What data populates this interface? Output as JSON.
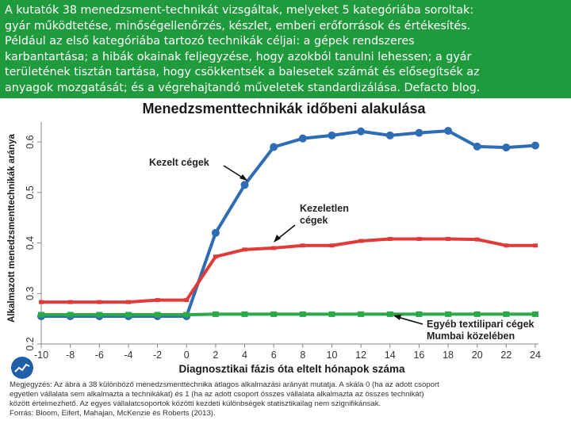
{
  "caption": {
    "lines": [
      "A kutatók 38 menedzsment-technikát vizsgáltak, melyeket 5 kategóriába soroltak:",
      "gyár működtetése, minőségellenőrzés, készlet, emberi erőforrások és értékesítés.",
      "Például az első kategóriába tartozó technikák céljai: a gépek rendszeres",
      "karbantartása; a hibák okainak feljegyzése, hogy azokból tanulni lehessen; a gyár",
      "területének tisztán tartása, hogy csökkentsék a balesetek számát és elősegítsék az",
      "anyagok mozgatását; és a végrehajtandó műveletek standardizálása. Defacto blog."
    ]
  },
  "chart_data": {
    "type": "line",
    "title": "Menedzsmenttechnikák időbeni alakulása",
    "xlabel": "Diagnosztikai fázis óta eltelt hónapok száma",
    "ylabel": "Alkalmazott menedzsmenttechnikák aránya",
    "x": [
      -10,
      -8,
      -6,
      -4,
      -2,
      0,
      2,
      4,
      6,
      8,
      10,
      12,
      14,
      16,
      18,
      20,
      22,
      24
    ],
    "xticks": [
      -10,
      -8,
      -6,
      -4,
      -2,
      0,
      2,
      4,
      6,
      8,
      10,
      12,
      14,
      16,
      18,
      20,
      22,
      24
    ],
    "xlim": [
      -10,
      24
    ],
    "yticks": [
      0.2,
      0.3,
      0.4,
      0.5,
      0.6
    ],
    "ytick_labels": [
      "0.2",
      "0.3",
      "0.4",
      "0.5",
      "0.6"
    ],
    "ylim": [
      0.2,
      0.63
    ],
    "series": [
      {
        "name": "Kezelt cégek",
        "color": "#2e6db4",
        "values": [
          0.255,
          0.255,
          0.255,
          0.255,
          0.255,
          0.255,
          0.42,
          0.515,
          0.59,
          0.607,
          0.613,
          0.621,
          0.613,
          0.618,
          0.622,
          0.591,
          0.589,
          0.593
        ]
      },
      {
        "name": "Kezeletlen cégek",
        "color": "#e03a3a",
        "values": [
          0.283,
          0.283,
          0.283,
          0.283,
          0.287,
          0.287,
          0.373,
          0.387,
          0.39,
          0.395,
          0.395,
          0.404,
          0.408,
          0.408,
          0.408,
          0.407,
          0.395,
          0.395
        ]
      },
      {
        "name": "Egyéb textilipari cégek Mumbai közelében",
        "color": "#2aa84a",
        "values": [
          0.258,
          0.258,
          0.258,
          0.258,
          0.258,
          0.258,
          0.259,
          0.259,
          0.259,
          0.259,
          0.259,
          0.259,
          0.259,
          0.259,
          0.259,
          0.259,
          0.259,
          0.259
        ]
      }
    ],
    "annotations": {
      "treated": "Kezelt cégek",
      "untreated_1": "Kezeletlen",
      "untreated_2": "cégek",
      "other_1": "Egyéb textilipari cégek",
      "other_2": "Mumbai közelében"
    },
    "footnote": [
      "Megjegyzés: Az ábra a 38 különböző menedzsmenttechnika átlagos alkalmazási arányát mutatja. A skála 0 (ha az adott csoport",
      "egyetlen vállalata sem alkalmazta a technikákat) és 1 (ha az adott csoport összes vállalata alkalmazta az összes technikát)",
      "között értelmezhető. Az egyes vállalatcsoportok közötti kezdeti különbségek statisztikailag nem szignifikánsak.",
      "Forrás: Bloom, Eifert, Mahajan, McKenzie és Roberts (2013)."
    ]
  }
}
